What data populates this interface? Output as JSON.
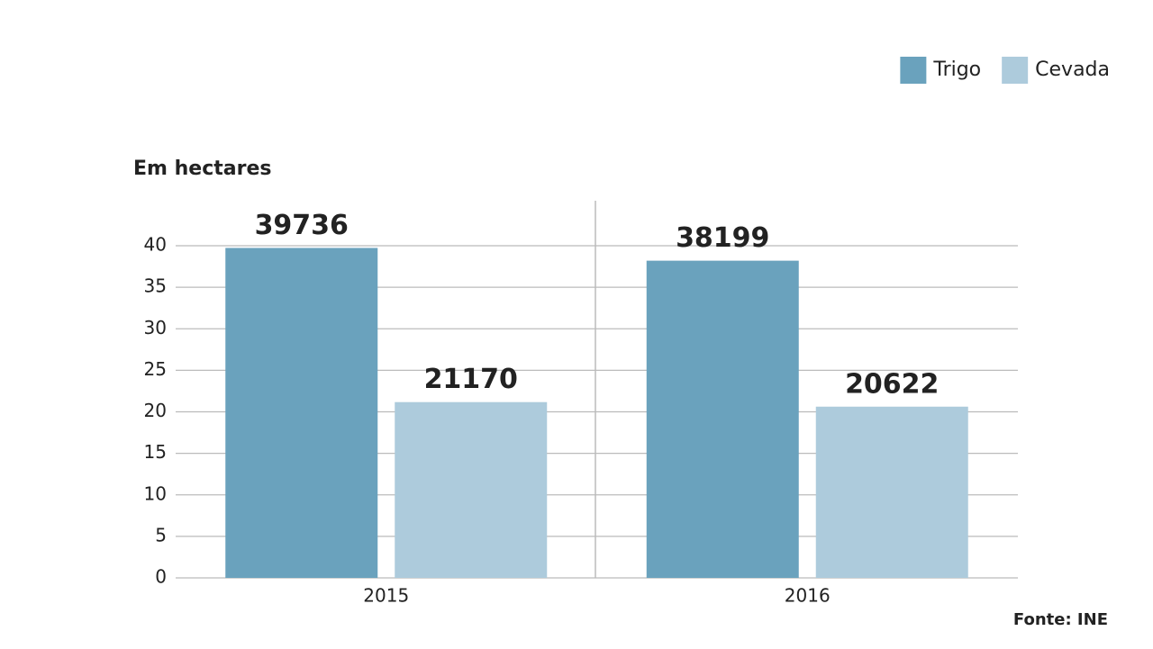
{
  "chart_data": {
    "type": "bar",
    "subtitle": "Em hectares",
    "source": "Fonte: INE",
    "categories": [
      "2015",
      "2016"
    ],
    "series": [
      {
        "name": "Trigo",
        "color": "#6aa2bd",
        "values": [
          39.736,
          38.199
        ],
        "value_labels": [
          "39736",
          "38199"
        ]
      },
      {
        "name": "Cevada",
        "color": "#adcbdc",
        "values": [
          21.17,
          20.622
        ],
        "value_labels": [
          "21170",
          "20622"
        ]
      }
    ],
    "ylim": [
      0,
      40
    ],
    "yticks": [
      0,
      5,
      10,
      15,
      20,
      25,
      30,
      35,
      40
    ],
    "grid": true,
    "legend": "top-right"
  }
}
